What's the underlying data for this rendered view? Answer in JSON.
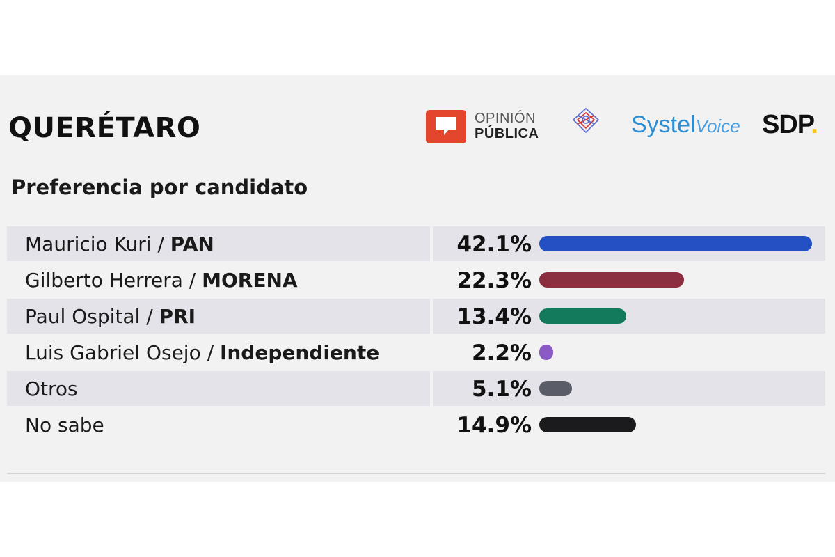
{
  "header": {
    "title": "QUERÉTARO",
    "subtitle": "Preferencia por candidato"
  },
  "logos": {
    "opinion_publica": {
      "line1": "OPINIÓN",
      "line2": "PÚBLICA",
      "box_color": "#e3452d"
    },
    "systel": {
      "main": "Systel",
      "voice": "Voice",
      "color": "#2a8fd6"
    },
    "sdp": {
      "text": "SDP",
      "dot": ".",
      "dot_color": "#f0c419"
    }
  },
  "chart_data": {
    "type": "bar",
    "orientation": "horizontal",
    "title": "Preferencia por candidato",
    "categories": [
      "Mauricio Kuri / PAN",
      "Gilberto Herrera / MORENA",
      "Paul Ospital / PRI",
      "Luis Gabriel Osejo / Independiente",
      "Otros",
      "No sabe"
    ],
    "rows": [
      {
        "name": "Mauricio Kuri / ",
        "party": "PAN",
        "value": 42.1,
        "label": "42.1%",
        "color": "#2350c2"
      },
      {
        "name": "Gilberto Herrera / ",
        "party": "MORENA",
        "value": 22.3,
        "label": "22.3%",
        "color": "#8b2e3f"
      },
      {
        "name": "Paul Ospital / ",
        "party": "PRI",
        "value": 13.4,
        "label": "13.4%",
        "color": "#137a5c"
      },
      {
        "name": "Luis Gabriel Osejo / ",
        "party": "Independiente",
        "value": 2.2,
        "label": "2.2%",
        "color": "#8a5bc4"
      },
      {
        "name": "Otros",
        "party": "",
        "value": 5.1,
        "label": "5.1%",
        "color": "#5a5c68"
      },
      {
        "name": "No sabe",
        "party": "",
        "value": 14.9,
        "label": "14.9%",
        "color": "#1b1b1d"
      }
    ],
    "xlim": [
      0,
      42.1
    ]
  }
}
